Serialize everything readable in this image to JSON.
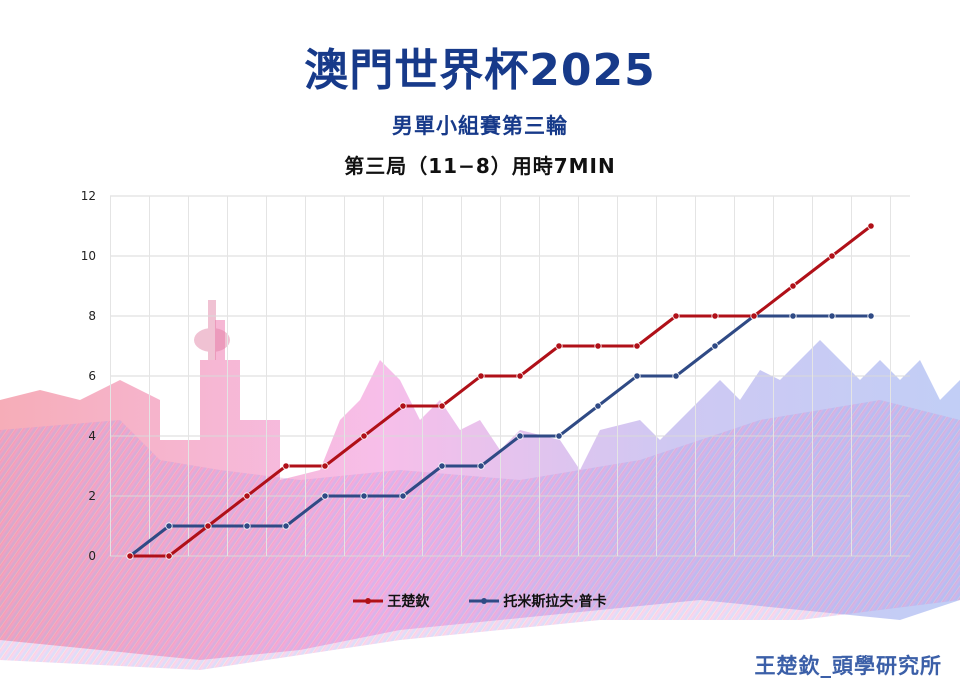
{
  "header": {
    "title": "澳門世界杯2025",
    "subtitle": "男單小組賽第三輪",
    "game_info": "第三局（11−8）用時7MIN"
  },
  "watermark": "王楚欽_頭學研究所",
  "colors": {
    "series1": "#b01018",
    "series2": "#2f4a85",
    "title": "#173a8a"
  },
  "chart_data": {
    "type": "line",
    "title": "",
    "xlabel": "",
    "ylabel": "",
    "ylim": [
      0,
      12
    ],
    "yticks": [
      0,
      2,
      4,
      6,
      8,
      10,
      12
    ],
    "x": [
      0,
      1,
      2,
      3,
      4,
      5,
      6,
      7,
      8,
      9,
      10,
      11,
      12,
      13,
      14,
      15,
      16,
      17,
      18,
      19
    ],
    "grid": true,
    "legend": "bottom",
    "series": [
      {
        "name": "王楚欽",
        "color": "#b01018",
        "values": [
          0,
          0,
          1,
          2,
          3,
          3,
          4,
          5,
          5,
          6,
          6,
          7,
          7,
          7,
          8,
          8,
          8,
          9,
          10,
          11
        ]
      },
      {
        "name": "托米斯拉夫·普卡",
        "color": "#2f4a85",
        "values": [
          0,
          1,
          1,
          1,
          1,
          2,
          2,
          2,
          3,
          3,
          4,
          4,
          5,
          6,
          6,
          7,
          8,
          8,
          8,
          8
        ]
      }
    ]
  }
}
